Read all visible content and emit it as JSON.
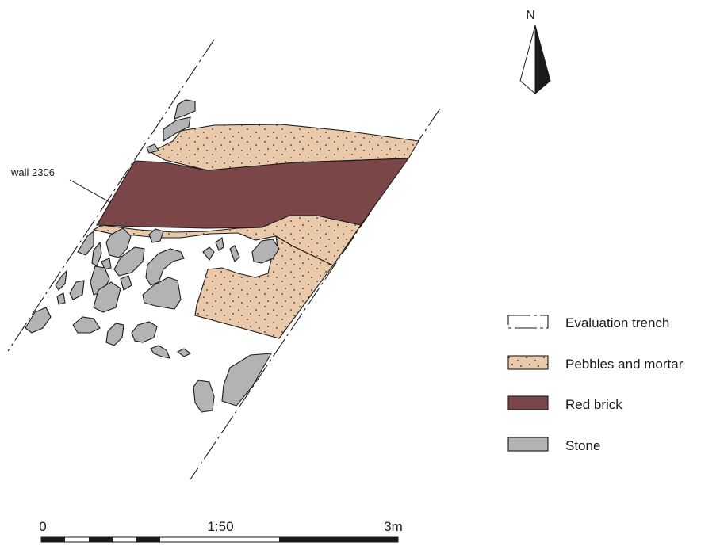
{
  "colors": {
    "pebbles_and_mortar": "#eac9aa",
    "red_brick": "#7a4648",
    "stone": "#b1b3b4",
    "line": "#1a1a1a"
  },
  "north_arrow": {
    "label": "N",
    "icon": "north-arrow-icon"
  },
  "annotations": {
    "wall_label": "wall 2306"
  },
  "legend": {
    "items": [
      {
        "label": "Evaluation trench",
        "swatch": "dashed-outline"
      },
      {
        "label": "Pebbles and mortar",
        "swatch": "dotted-fill"
      },
      {
        "label": "Red brick",
        "swatch": "solid-fill"
      },
      {
        "label": "Stone",
        "swatch": "solid-fill"
      }
    ]
  },
  "scale_bar": {
    "start_label": "0",
    "ratio_label": "1:50",
    "end_label": "3m"
  }
}
